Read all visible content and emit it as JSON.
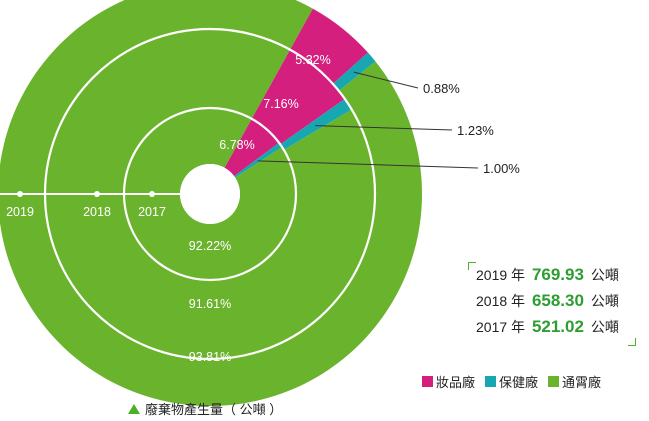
{
  "chart_data": {
    "type": "pie",
    "colors": {
      "cosmetics": "#d41f7e",
      "health": "#17a7b1",
      "general": "#6ab42d"
    },
    "rings": [
      {
        "year": "2017",
        "slices": [
          {
            "category": "cosmetics",
            "label": "6.78%",
            "value": 6.78
          },
          {
            "category": "health",
            "label": "1.00%",
            "value": 1.0
          },
          {
            "category": "general",
            "label": "92.22%",
            "value": 92.22
          }
        ]
      },
      {
        "year": "2018",
        "slices": [
          {
            "category": "cosmetics",
            "label": "7.16%",
            "value": 7.16
          },
          {
            "category": "health",
            "label": "1.23%",
            "value": 1.23
          },
          {
            "category": "general",
            "label": "91.61%",
            "value": 91.61
          }
        ]
      },
      {
        "year": "2019",
        "slices": [
          {
            "category": "cosmetics",
            "label": "5.32%",
            "value": 5.32
          },
          {
            "category": "health",
            "label": "0.88%",
            "value": 0.88
          },
          {
            "category": "general",
            "label": "93.81%",
            "value": 93.81
          }
        ]
      }
    ],
    "legend": [
      {
        "category": "cosmetics",
        "label": "妝品廠"
      },
      {
        "category": "health",
        "label": "保健廠"
      },
      {
        "category": "general",
        "label": "通霄廠"
      }
    ],
    "totals": [
      {
        "year": "2019",
        "year_unit": "年",
        "value": "769.93",
        "unit": "公噸"
      },
      {
        "year": "2018",
        "year_unit": "年",
        "value": "658.30",
        "unit": "公噸"
      },
      {
        "year": "2017",
        "year_unit": "年",
        "value": "521.02",
        "unit": "公噸"
      }
    ],
    "note": "廢棄物產生量（ 公噸 ）"
  }
}
